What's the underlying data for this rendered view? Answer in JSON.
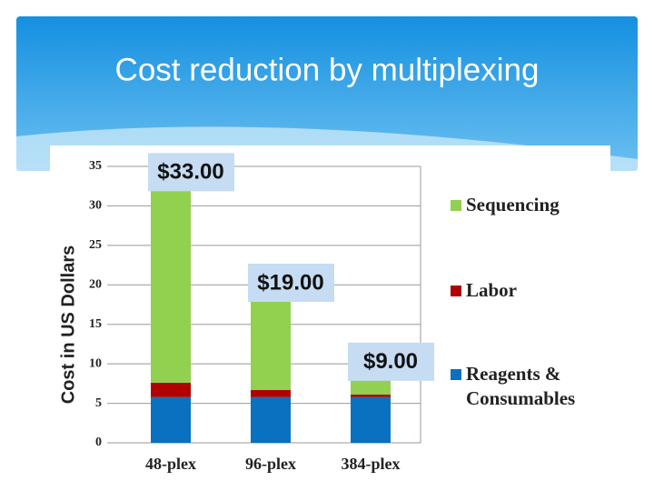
{
  "chart_data": {
    "type": "stacked-bar",
    "title": "Cost reduction by multiplexing",
    "y_label": "Cost in US Dollars",
    "categories": [
      "48-plex",
      "96-plex",
      "384-plex"
    ],
    "series": [
      {
        "name": "Reagents & Consumables",
        "color": "#0a70c0",
        "values": [
          5.8,
          5.8,
          5.8
        ]
      },
      {
        "name": "Labor",
        "color": "#b00000",
        "values": [
          1.8,
          0.9,
          0.3
        ]
      },
      {
        "name": "Sequencing",
        "color": "#92d050",
        "values": [
          25.4,
          12.3,
          2.9
        ]
      }
    ],
    "totals": [
      33,
      19,
      9
    ],
    "total_labels": [
      "$33.00",
      "$19.00",
      "$9.00"
    ],
    "ylim": [
      0,
      35
    ],
    "yticks": [
      0,
      5,
      10,
      15,
      20,
      25,
      30,
      35
    ],
    "grid": true
  }
}
